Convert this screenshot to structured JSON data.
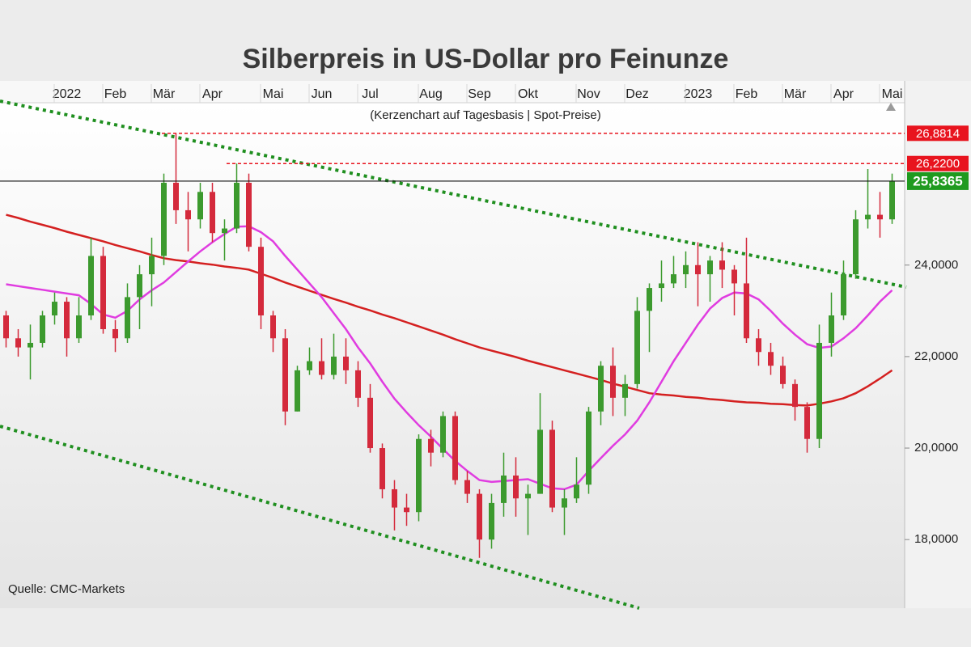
{
  "chart_data": {
    "type": "candlestick",
    "title": "Silberpreis in US-Dollar pro Feinunze",
    "subtitle": "(Kerzenchart auf Tagesbasis | Spot-Preise)",
    "source": "Quelle: CMC-Markets",
    "categories": [
      null,
      null,
      null,
      null,
      null,
      "2022",
      null,
      null,
      null,
      "Feb",
      null,
      null,
      null,
      "Mär",
      null,
      null,
      null,
      "Apr",
      null,
      null,
      null,
      null,
      "Mai",
      null,
      null,
      null,
      "Jun",
      null,
      null,
      null,
      "Jul",
      null,
      null,
      null,
      null,
      "Aug",
      null,
      null,
      null,
      "Sep",
      null,
      null,
      null,
      "Okt",
      null,
      null,
      null,
      null,
      "Nov",
      null,
      null,
      null,
      "Dez",
      null,
      null,
      null,
      null,
      "2023",
      null,
      null,
      null,
      "Feb",
      null,
      null,
      null,
      "Mär",
      null,
      null,
      null,
      "Apr",
      null,
      null,
      null,
      "Mai"
    ],
    "open": [
      22.9,
      22.4,
      22.2,
      22.3,
      22.9,
      23.2,
      22.4,
      22.9,
      24.2,
      22.6,
      22.4,
      23.3,
      23.8,
      24.2,
      25.8,
      25.2,
      25.0,
      25.6,
      24.7,
      24.8,
      25.8,
      24.4,
      22.9,
      22.4,
      20.8,
      21.7,
      21.9,
      21.6,
      22.0,
      21.7,
      21.1,
      20.0,
      19.1,
      18.7,
      18.6,
      20.2,
      19.9,
      20.7,
      19.3,
      19.0,
      18.0,
      18.8,
      19.4,
      18.9,
      19.0,
      20.4,
      18.7,
      18.9,
      19.2,
      20.8,
      21.8,
      21.1,
      21.4,
      23.0,
      23.5,
      23.6,
      23.8,
      24.0,
      23.8,
      24.1,
      23.9,
      23.6,
      22.4,
      22.1,
      21.8,
      21.4,
      20.9,
      20.2,
      22.3,
      22.9,
      23.8,
      25.0,
      25.1,
      25.0
    ],
    "high": [
      23.0,
      22.6,
      22.7,
      23.0,
      23.4,
      23.3,
      23.3,
      24.6,
      24.4,
      22.8,
      23.6,
      24.0,
      24.6,
      26.0,
      26.8814,
      25.6,
      25.8,
      25.8,
      25.0,
      26.22,
      26.0,
      24.6,
      23.0,
      22.6,
      21.8,
      22.2,
      22.4,
      22.5,
      22.4,
      21.9,
      21.4,
      20.1,
      19.3,
      19.0,
      20.3,
      20.4,
      20.8,
      20.8,
      19.5,
      19.1,
      19.0,
      19.9,
      19.8,
      19.2,
      21.2,
      20.6,
      19.1,
      19.8,
      20.9,
      21.9,
      22.2,
      21.6,
      23.3,
      23.6,
      24.1,
      24.2,
      24.3,
      24.5,
      24.2,
      24.5,
      24.0,
      24.6,
      22.6,
      22.3,
      22.0,
      21.5,
      21.0,
      22.7,
      23.4,
      24.1,
      25.2,
      26.1,
      25.6,
      26.0
    ],
    "low": [
      22.2,
      22.0,
      21.5,
      22.2,
      22.7,
      22.0,
      22.3,
      22.8,
      22.5,
      22.1,
      22.3,
      22.6,
      23.1,
      24.0,
      24.9,
      24.3,
      24.8,
      24.5,
      24.1,
      24.7,
      24.3,
      22.6,
      22.1,
      20.5,
      20.8,
      21.6,
      21.5,
      21.5,
      21.4,
      20.9,
      19.9,
      18.9,
      18.2,
      18.3,
      18.4,
      19.6,
      19.8,
      19.2,
      18.8,
      17.6,
      17.8,
      18.5,
      18.5,
      18.1,
      19.0,
      18.6,
      18.1,
      18.8,
      19.0,
      20.5,
      20.7,
      20.7,
      21.3,
      22.1,
      23.2,
      23.5,
      23.5,
      23.1,
      23.2,
      23.5,
      22.9,
      22.3,
      21.8,
      21.6,
      21.3,
      20.6,
      19.9,
      20.0,
      22.0,
      22.8,
      23.7,
      24.8,
      24.6,
      24.9
    ],
    "close": [
      22.4,
      22.2,
      22.3,
      22.9,
      23.2,
      22.4,
      22.9,
      24.2,
      22.6,
      22.4,
      23.3,
      23.8,
      24.2,
      25.8,
      25.2,
      25.0,
      25.6,
      24.7,
      24.8,
      25.8,
      24.4,
      22.9,
      22.4,
      20.8,
      21.7,
      21.9,
      21.6,
      22.0,
      21.7,
      21.1,
      20.0,
      19.1,
      18.7,
      18.6,
      20.2,
      19.9,
      20.7,
      19.3,
      19.0,
      18.0,
      18.8,
      19.4,
      18.9,
      19.0,
      20.4,
      18.7,
      18.9,
      19.2,
      20.8,
      21.8,
      21.1,
      21.4,
      23.0,
      23.5,
      23.6,
      23.8,
      24.0,
      23.8,
      24.1,
      23.9,
      23.6,
      22.4,
      22.1,
      21.8,
      21.4,
      20.9,
      20.2,
      22.3,
      22.9,
      23.8,
      25.0,
      25.1,
      25.0,
      25.8365
    ],
    "up_color": "#3c9a2e",
    "down_color": "#d42a3c",
    "lines": [
      {
        "color": "#d42020",
        "values": [
          25.1,
          25.03,
          24.95,
          24.88,
          24.81,
          24.73,
          24.66,
          24.59,
          24.52,
          24.44,
          24.37,
          24.3,
          24.22,
          24.15,
          24.11,
          24.08,
          24.04,
          24.01,
          23.97,
          23.94,
          23.9,
          23.81,
          23.72,
          23.62,
          23.53,
          23.44,
          23.35,
          23.26,
          23.18,
          23.09,
          23.01,
          22.92,
          22.84,
          22.75,
          22.66,
          22.57,
          22.48,
          22.38,
          22.29,
          22.2,
          22.13,
          22.06,
          21.99,
          21.91,
          21.84,
          21.77,
          21.7,
          21.63,
          21.56,
          21.49,
          21.41,
          21.34,
          21.27,
          21.2,
          21.17,
          21.15,
          21.12,
          21.1,
          21.07,
          21.05,
          21.02,
          21.0,
          20.99,
          20.97,
          20.96,
          20.94,
          20.93,
          20.97,
          21.02,
          21.09,
          21.2,
          21.35,
          21.52,
          21.7
        ]
      },
      {
        "color": "#e03ce0",
        "values": [
          23.58,
          23.54,
          23.5,
          23.46,
          23.42,
          23.38,
          23.34,
          23.15,
          22.92,
          22.85,
          23.0,
          23.25,
          23.45,
          23.62,
          23.85,
          24.08,
          24.3,
          24.5,
          24.68,
          24.84,
          24.85,
          24.72,
          24.52,
          24.2,
          23.9,
          23.6,
          23.3,
          22.95,
          22.6,
          22.2,
          21.85,
          21.45,
          21.08,
          20.78,
          20.5,
          20.25,
          19.98,
          19.72,
          19.5,
          19.3,
          19.26,
          19.28,
          19.3,
          19.32,
          19.22,
          19.12,
          19.1,
          19.2,
          19.5,
          19.78,
          20.05,
          20.3,
          20.6,
          21.0,
          21.45,
          21.9,
          22.3,
          22.7,
          23.05,
          23.28,
          23.4,
          23.38,
          23.25,
          23.0,
          22.72,
          22.48,
          22.27,
          22.19,
          22.22,
          22.4,
          22.62,
          22.9,
          23.2,
          23.45
        ]
      }
    ],
    "reference_lines": [
      {
        "value": 26.8814,
        "label": "26,8814",
        "color": "#e8141e",
        "style": "dashed"
      },
      {
        "value": 26.22,
        "label": "26,2200",
        "color": "#e8141e",
        "style": "dashed"
      },
      {
        "value": 25.8365,
        "label": "25,8365",
        "color": "#1f9a1f",
        "style": "solid"
      }
    ],
    "ylim": [
      16.5,
      27.55
    ],
    "yticks": [
      {
        "value": 18,
        "label": "18,0000"
      },
      {
        "value": 20,
        "label": "20,0000"
      },
      {
        "value": 22,
        "label": "22,0000"
      },
      {
        "value": 24,
        "label": "24,0000"
      }
    ]
  }
}
